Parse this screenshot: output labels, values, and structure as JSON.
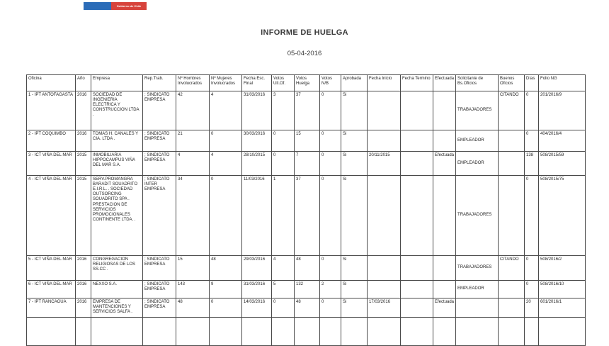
{
  "logo": {
    "label": "Gobierno de Chile",
    "blue_color": "#2b6cb8",
    "red_color": "#d7433b"
  },
  "page": {
    "title": "INFORME DE HUELGA",
    "date": "05-04-2016"
  },
  "table": {
    "columns": [
      "Oficina",
      "Año",
      "Empresa",
      "Rep.Trab.",
      "Nº Hombres Involucrados",
      "Nº Mujeres Involucrados",
      "Fecha Esc. Final",
      "Votos Ult.Of.",
      "Votos Huelga",
      "Votos N/B",
      "Aprobada",
      "Fecha Inicio",
      "Fecha Termino",
      "Efectuada",
      "Solicitante de Bs.Oficios",
      "Buenos Oficios",
      "Días",
      "Folio NG"
    ],
    "rows": [
      [
        "1 - IPT ANTOFAGASTA",
        "2016",
        "SOCIEDAD DE INGENIERIA ELECTRICA Y CONSTRUCCION LTDA .",
        "; SINDICATO EMPRESA",
        "42",
        "4",
        "31/03/2016",
        "3",
        "37",
        "0",
        "Si",
        "",
        "",
        "",
        "TRABAJADORES",
        "CITANDO",
        "0",
        "201/2016/9"
      ],
      [
        "2 - IPT COQUIMBO",
        "2016",
        "TOMAS H. CANALES Y CIA. LTDA .",
        "; SINDICATO EMPRESA",
        "21",
        "0",
        "30/03/2016",
        "0",
        "15",
        "0",
        "Si",
        "",
        "",
        "",
        "EMPLEADOR",
        "",
        "0",
        "404/2016/4"
      ],
      [
        "3 - ICT VIÑA DEL MAR",
        "2015",
        "INMOBILIARIA HIPPOCAMPUS VIÑA DEL MAR S.A.",
        "; SINDICATO EMPRESA",
        "4",
        "4",
        "28/10/2015",
        "0",
        "7",
        "0",
        "Si",
        "20/11/2015",
        "",
        "Efectuada",
        "EMPLEADOR",
        "",
        "138",
        "508/2015/59"
      ],
      [
        "4 - ICT VIÑA DEL MAR",
        "2015",
        "SERV.PROMANGRA BARADIT SOUADRITO E.I.R.L. . SOCIEDAD OUTSORCING SOUADRITO SPA . PRESTACION DE SERVICIOS PROMOCIONALES CONTINENTE LTDA. .",
        "; SINDICATO INTER EMPRESA",
        "34",
        "0",
        "11/03/2016",
        "1",
        "37",
        "0",
        "Si",
        "",
        "",
        "",
        "TRABAJADORES",
        "",
        "0",
        "508/2015/75"
      ],
      [
        "5 - ICT VIÑA DEL MAR",
        "2016",
        "CONGREGACION RELIGIOSAS DE LOS SS.CC .",
        "; SINDICATO EMPRESA",
        "15",
        "48",
        "29/03/2016",
        "4",
        "48",
        "0",
        "Si",
        "",
        "",
        "",
        "TRABAJADORES",
        "CITANDO",
        "0",
        "508/2016/2"
      ],
      [
        "6 - ICT VIÑA DEL MAR",
        "2016",
        "NEXXO S.A.",
        "; SINDICATO EMPRESA",
        "143",
        "9",
        "31/03/2016",
        "5",
        "132",
        "2",
        "Si",
        "",
        "",
        "",
        "EMPLEADOR",
        "",
        "0",
        "508/2016/10"
      ],
      [
        "7 - IPT RANCAGUA",
        "2016",
        "EMPRESA DE MANTENCIONES Y SERVICIOS SALFA .",
        "; SINDICATO EMPRESA",
        "48",
        "0",
        "14/03/2016",
        "0",
        "48",
        "0",
        "Si",
        "17/03/2016",
        "",
        "Efectuada",
        "",
        "",
        "20",
        "601/2016/1"
      ],
      [
        "",
        "",
        "",
        "",
        "",
        "",
        "",
        "",
        "",
        "",
        "",
        "",
        "",
        "",
        "",
        "",
        "",
        ""
      ]
    ]
  }
}
